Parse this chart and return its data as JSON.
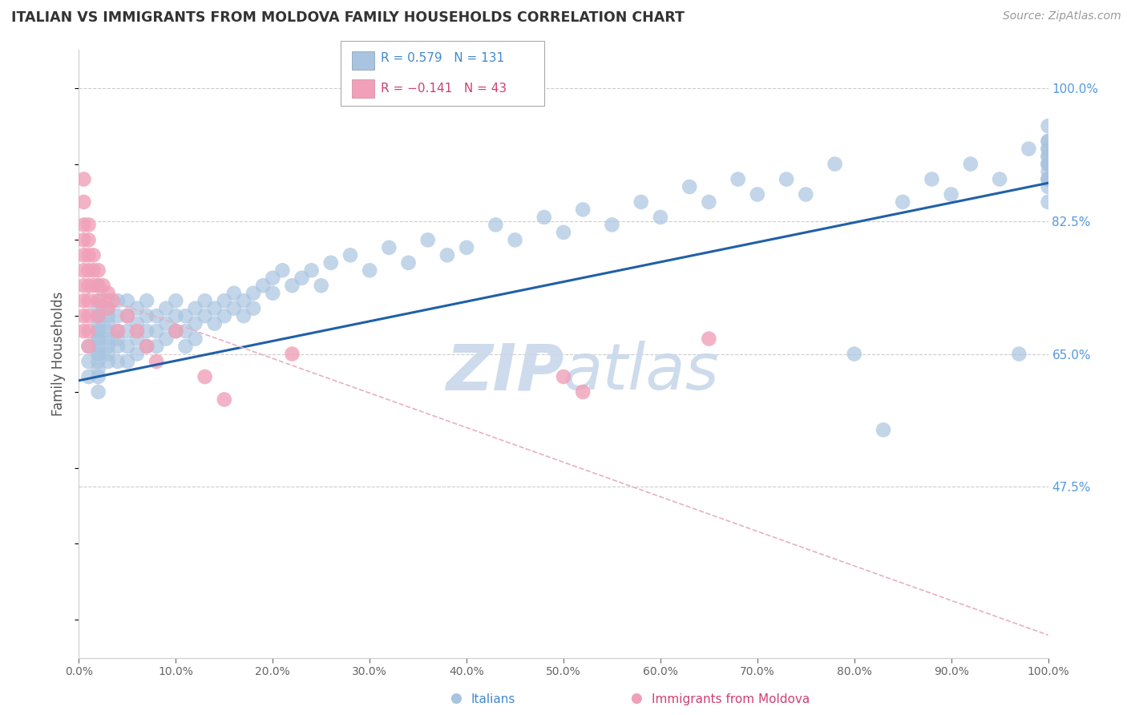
{
  "title": "ITALIAN VS IMMIGRANTS FROM MOLDOVA FAMILY HOUSEHOLDS CORRELATION CHART",
  "source": "Source: ZipAtlas.com",
  "ylabel": "Family Households",
  "y_tick_labels": [
    "47.5%",
    "65.0%",
    "82.5%",
    "100.0%"
  ],
  "y_tick_values": [
    0.475,
    0.65,
    0.825,
    1.0
  ],
  "legend_blue_r": "R = 0.579",
  "legend_blue_n": "N = 131",
  "legend_pink_r": "R = −0.141",
  "legend_pink_n": "N = 43",
  "legend_label_blue": "Italians",
  "legend_label_pink": "Immigrants from Moldova",
  "blue_color": "#a8c4e0",
  "blue_line_color": "#2060a8",
  "pink_color": "#f0a0b8",
  "pink_dash_color": "#e8b0c0",
  "watermark_color": "#c8d8ea",
  "background_color": "#ffffff",
  "grid_color": "#cccccc",
  "title_color": "#333333",
  "axis_label_color": "#4488cc",
  "right_label_color": "#5599dd",
  "blue_scatter_x": [
    0.01,
    0.01,
    0.01,
    0.02,
    0.02,
    0.02,
    0.02,
    0.02,
    0.02,
    0.02,
    0.02,
    0.02,
    0.02,
    0.02,
    0.02,
    0.02,
    0.02,
    0.02,
    0.02,
    0.02,
    0.03,
    0.03,
    0.03,
    0.03,
    0.03,
    0.03,
    0.03,
    0.03,
    0.03,
    0.04,
    0.04,
    0.04,
    0.04,
    0.04,
    0.04,
    0.05,
    0.05,
    0.05,
    0.05,
    0.05,
    0.06,
    0.06,
    0.06,
    0.06,
    0.07,
    0.07,
    0.07,
    0.07,
    0.08,
    0.08,
    0.08,
    0.09,
    0.09,
    0.09,
    0.1,
    0.1,
    0.1,
    0.11,
    0.11,
    0.11,
    0.12,
    0.12,
    0.12,
    0.13,
    0.13,
    0.14,
    0.14,
    0.15,
    0.15,
    0.16,
    0.16,
    0.17,
    0.17,
    0.18,
    0.18,
    0.19,
    0.2,
    0.2,
    0.21,
    0.22,
    0.23,
    0.24,
    0.25,
    0.26,
    0.28,
    0.3,
    0.32,
    0.34,
    0.36,
    0.38,
    0.4,
    0.43,
    0.45,
    0.48,
    0.5,
    0.52,
    0.55,
    0.58,
    0.6,
    0.63,
    0.65,
    0.68,
    0.7,
    0.73,
    0.75,
    0.78,
    0.8,
    0.83,
    0.85,
    0.88,
    0.9,
    0.92,
    0.95,
    0.97,
    0.98,
    1.0,
    1.0,
    1.0,
    1.0,
    1.0,
    1.0,
    1.0,
    1.0,
    1.0,
    1.0,
    1.0,
    1.0,
    1.0,
    1.0,
    1.0,
    1.0
  ],
  "blue_scatter_y": [
    0.66,
    0.64,
    0.62,
    0.7,
    0.68,
    0.66,
    0.64,
    0.62,
    0.7,
    0.68,
    0.67,
    0.65,
    0.63,
    0.6,
    0.72,
    0.74,
    0.69,
    0.71,
    0.67,
    0.65,
    0.68,
    0.66,
    0.64,
    0.7,
    0.72,
    0.67,
    0.69,
    0.65,
    0.71,
    0.68,
    0.66,
    0.7,
    0.72,
    0.64,
    0.67,
    0.7,
    0.68,
    0.66,
    0.72,
    0.64,
    0.69,
    0.67,
    0.71,
    0.65,
    0.7,
    0.68,
    0.66,
    0.72,
    0.68,
    0.7,
    0.66,
    0.69,
    0.67,
    0.71,
    0.7,
    0.68,
    0.72,
    0.7,
    0.68,
    0.66,
    0.71,
    0.69,
    0.67,
    0.72,
    0.7,
    0.71,
    0.69,
    0.72,
    0.7,
    0.73,
    0.71,
    0.72,
    0.7,
    0.73,
    0.71,
    0.74,
    0.75,
    0.73,
    0.76,
    0.74,
    0.75,
    0.76,
    0.74,
    0.77,
    0.78,
    0.76,
    0.79,
    0.77,
    0.8,
    0.78,
    0.79,
    0.82,
    0.8,
    0.83,
    0.81,
    0.84,
    0.82,
    0.85,
    0.83,
    0.87,
    0.85,
    0.88,
    0.86,
    0.88,
    0.86,
    0.9,
    0.65,
    0.55,
    0.85,
    0.88,
    0.86,
    0.9,
    0.88,
    0.65,
    0.92,
    0.88,
    0.9,
    0.85,
    0.92,
    0.9,
    0.88,
    0.93,
    0.91,
    0.89,
    0.87,
    0.93,
    0.91,
    0.95,
    0.92,
    0.9,
    0.88
  ],
  "pink_scatter_x": [
    0.005,
    0.005,
    0.005,
    0.005,
    0.005,
    0.005,
    0.005,
    0.005,
    0.005,
    0.005,
    0.01,
    0.01,
    0.01,
    0.01,
    0.01,
    0.01,
    0.01,
    0.01,
    0.01,
    0.015,
    0.015,
    0.015,
    0.02,
    0.02,
    0.02,
    0.02,
    0.025,
    0.025,
    0.03,
    0.03,
    0.035,
    0.04,
    0.05,
    0.06,
    0.07,
    0.08,
    0.1,
    0.13,
    0.15,
    0.22,
    0.5,
    0.52,
    0.65
  ],
  "pink_scatter_y": [
    0.88,
    0.85,
    0.82,
    0.8,
    0.78,
    0.76,
    0.74,
    0.72,
    0.7,
    0.68,
    0.82,
    0.8,
    0.78,
    0.76,
    0.74,
    0.72,
    0.7,
    0.68,
    0.66,
    0.78,
    0.76,
    0.74,
    0.76,
    0.74,
    0.72,
    0.7,
    0.74,
    0.72,
    0.73,
    0.71,
    0.72,
    0.68,
    0.7,
    0.68,
    0.66,
    0.64,
    0.68,
    0.62,
    0.59,
    0.65,
    0.62,
    0.6,
    0.67
  ],
  "blue_trend_x": [
    0.0,
    1.0
  ],
  "blue_trend_y": [
    0.615,
    0.875
  ],
  "pink_trend_x": [
    0.0,
    1.0
  ],
  "pink_trend_y": [
    0.735,
    0.28
  ],
  "xlim": [
    0.0,
    1.0
  ],
  "ylim": [
    0.25,
    1.05
  ],
  "x_ticks": [
    0.0,
    0.1,
    0.2,
    0.3,
    0.4,
    0.5,
    0.6,
    0.7,
    0.8,
    0.9,
    1.0
  ],
  "x_tick_labels": [
    "0.0%",
    "10.0%",
    "20.0%",
    "30.0%",
    "40.0%",
    "50.0%",
    "60.0%",
    "70.0%",
    "80.0%",
    "90.0%",
    "100.0%"
  ]
}
